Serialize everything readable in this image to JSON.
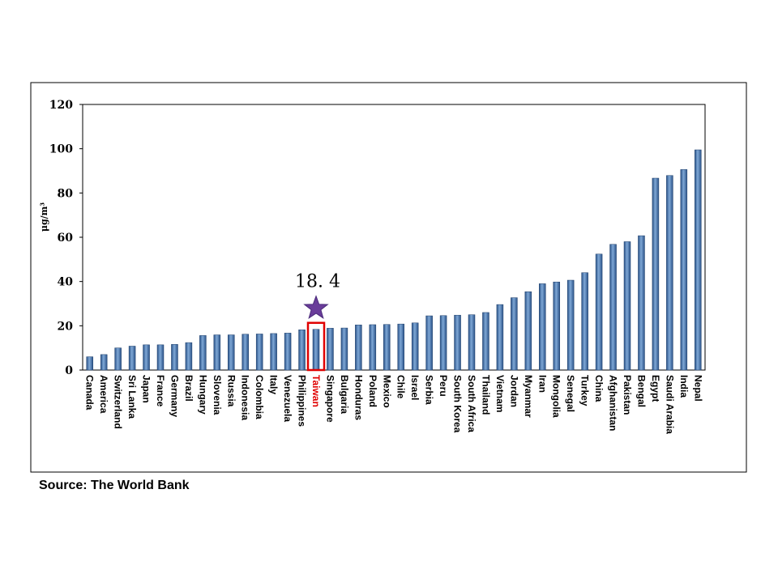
{
  "source": "Source: The World Bank",
  "chart_data": {
    "type": "bar",
    "title": "",
    "xlabel": "",
    "ylabel": "μg/m³",
    "ylim": [
      0,
      120
    ],
    "yticks": [
      0,
      20,
      40,
      60,
      80,
      100,
      120
    ],
    "grid": false,
    "bar_color": "#3d6fa8",
    "highlight_color": "#e00000",
    "star_color": "#6a3d9a",
    "highlight_category": "Taiwan",
    "highlight_label": "18. 4",
    "categories": [
      "Canada",
      "America",
      "Switzerland",
      "Sri Lanka",
      "Japan",
      "France",
      "Germany",
      "Brazil",
      "Hungary",
      "Slovenia",
      "Russia",
      "Indonesia",
      "Colombia",
      "Italy",
      "Venezuela",
      "Philippines",
      "Taiwan",
      "Singapore",
      "Bulgaria",
      "Honduras",
      "Poland",
      "Mexico",
      "Chile",
      "Israel",
      "Serbia",
      "Peru",
      "South Korea",
      "South Africa",
      "Thailand",
      "Vietnam",
      "Jordan",
      "Myanmar",
      "Iran",
      "Mongolia",
      "Senegal",
      "Turkey",
      "China",
      "Afghanistan",
      "Pakistan",
      "Bengal",
      "Egypt",
      "Saudi Arabia",
      "India",
      "Nepal"
    ],
    "values": [
      6,
      7,
      10,
      10.8,
      11.4,
      11.4,
      11.6,
      12.4,
      15.6,
      15.9,
      15.9,
      16.2,
      16.3,
      16.5,
      16.7,
      18.2,
      18.4,
      18.9,
      19,
      20.4,
      20.5,
      20.6,
      20.8,
      21.3,
      24.5,
      24.6,
      24.8,
      25,
      26,
      29.6,
      32.7,
      35.4,
      39,
      39.8,
      40.6,
      44,
      52.4,
      56.8,
      58,
      60.7,
      86.7,
      87.9,
      90.6,
      99.5
    ]
  }
}
